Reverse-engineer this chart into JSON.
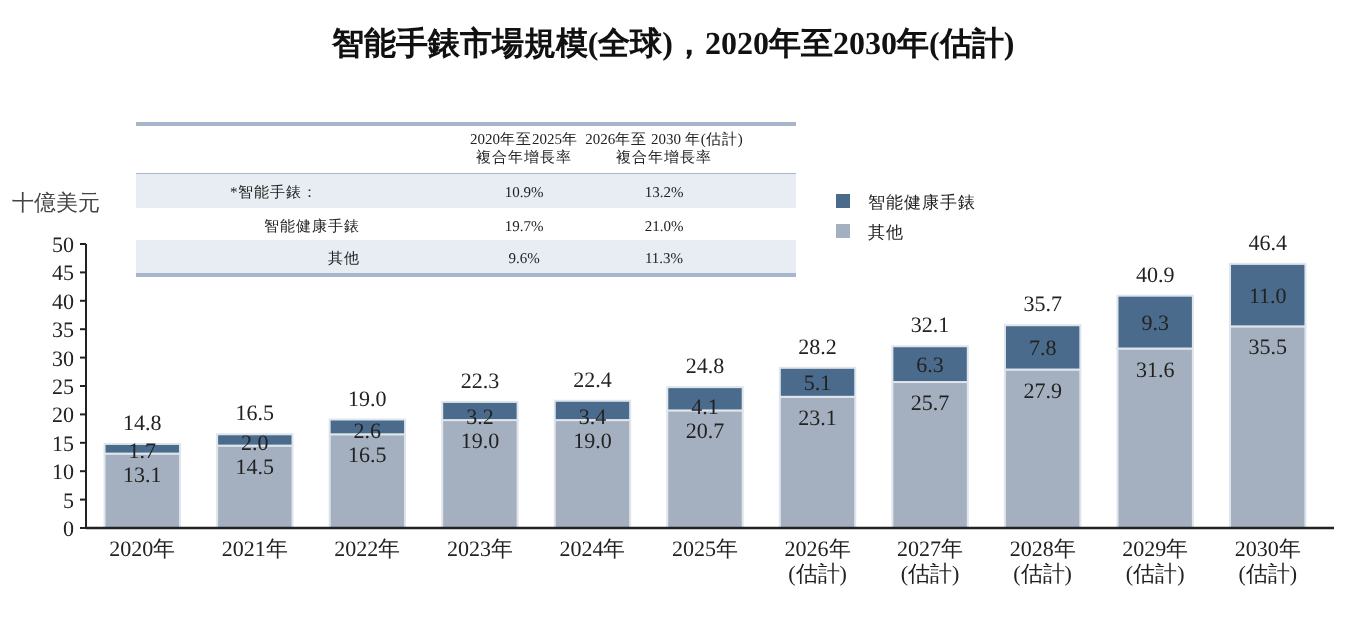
{
  "chart_data": {
    "type": "bar",
    "stacked": true,
    "title": "智能手錶市場規模(全球)，2020年至2030年(估計)",
    "ylabel": "十億美元",
    "categories": [
      "2020年",
      "2021年",
      "2022年",
      "2023年",
      "2024年",
      "2025年",
      "2026年\n(估計)",
      "2027年\n(估計)",
      "2028年\n(估計)",
      "2029年\n(估計)",
      "2030年\n(估計)"
    ],
    "series": [
      {
        "name": "其他",
        "color": "#a4b0c0",
        "values": [
          13.1,
          14.5,
          16.5,
          19.0,
          19.0,
          20.7,
          23.1,
          25.7,
          27.9,
          31.6,
          35.5
        ],
        "value_labels": [
          "13.1",
          "14.5",
          "16.5",
          "19.0",
          "19.0",
          "20.7",
          "23.1",
          "25.7",
          "27.9",
          "31.6",
          "35.5"
        ]
      },
      {
        "name": "智能健康手錶",
        "color": "#4a6b8c",
        "values": [
          1.7,
          2.0,
          2.6,
          3.2,
          3.4,
          4.1,
          5.1,
          6.3,
          7.8,
          9.3,
          11.0
        ],
        "value_labels": [
          "1.7",
          "2.0",
          "2.6",
          "3.2",
          "3.4",
          "4.1",
          "5.1",
          "6.3",
          "7.8",
          "9.3",
          "11.0"
        ]
      }
    ],
    "totals": [
      "14.8",
      "16.5",
      "19.0",
      "22.3",
      "22.4",
      "24.8",
      "28.2",
      "32.1",
      "35.7",
      "40.9",
      "46.4"
    ],
    "ylim": [
      0,
      50
    ],
    "yticks": [
      0,
      5,
      10,
      15,
      20,
      25,
      30,
      35,
      40,
      45,
      50
    ],
    "grid": false,
    "legend": "top right",
    "annotations": [
      "2020年至2025年",
      "複合年增長率",
      "2026年至 2030 年(估計)",
      "複合年增長率",
      "*智能手錶：",
      "10.9%",
      "13.2%",
      "智能健康手錶",
      "19.7%",
      "21.0%",
      "其他",
      "9.6%",
      "11.3%"
    ]
  }
}
